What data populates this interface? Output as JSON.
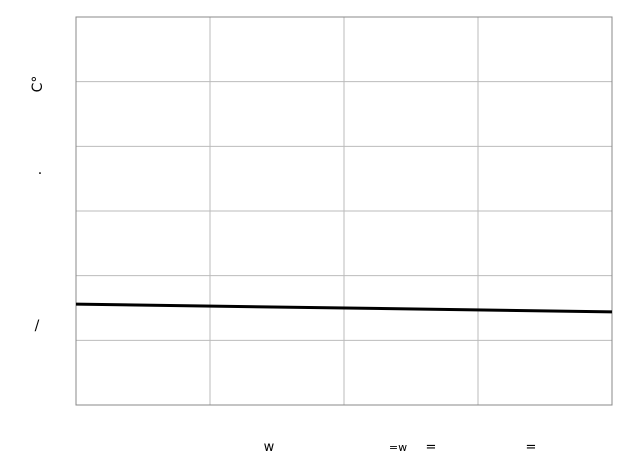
{
  "chart_data": {
    "type": "line",
    "y_labels": [
      {
        "text": "C°",
        "rotate": true
      },
      {
        "text": ".",
        "rotate": false
      },
      {
        "text": "/",
        "rotate": false
      }
    ],
    "x_labels": [
      "w",
      "=w",
      "=",
      "="
    ],
    "grid": true,
    "series": [
      {
        "values": [
          0.74,
          0.76
        ]
      }
    ],
    "colors": {
      "line": "#000000",
      "grid": "#bbbbbb",
      "frame": "#888888"
    }
  }
}
